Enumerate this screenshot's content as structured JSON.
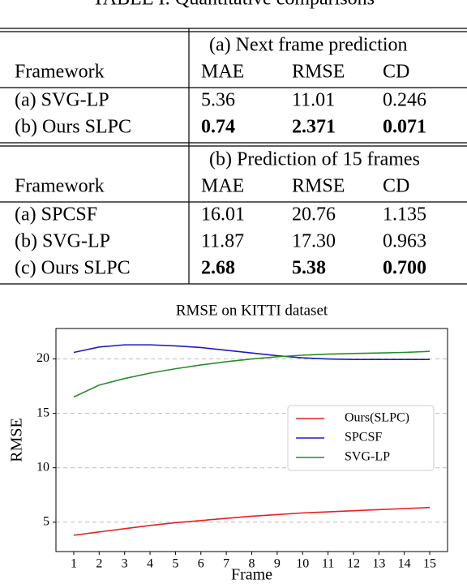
{
  "title": "TABLE I: Quantitative comparisons",
  "table": {
    "sections": [
      {
        "caption": "(a) Next frame prediction",
        "header": [
          "Framework",
          "MAE",
          "RMSE",
          "CD"
        ],
        "rows": [
          [
            "(a) SVG-LP",
            "5.36",
            "11.01",
            "0.246"
          ],
          [
            "(b) Ours SLPC",
            "0.74",
            "2.371",
            "0.071"
          ]
        ],
        "bold_row": 1
      },
      {
        "caption": "(b) Prediction of 15 frames",
        "header": [
          "Framework",
          "MAE",
          "RMSE",
          "CD"
        ],
        "rows": [
          [
            "(a) SPCSF",
            "16.01",
            "20.76",
            "1.135"
          ],
          [
            "(b) SVG-LP",
            "11.87",
            "17.30",
            "0.963"
          ],
          [
            "(c) Ours SLPC",
            "2.68",
            "5.38",
            "0.700"
          ]
        ],
        "bold_row": 2
      }
    ]
  },
  "chart_data": {
    "type": "line",
    "title": "RMSE on KITTI dataset",
    "x_label": "Frame",
    "y_label": "RMSE",
    "x": [
      1,
      2,
      3,
      4,
      5,
      6,
      7,
      8,
      9,
      10,
      11,
      12,
      13,
      14,
      15
    ],
    "series": [
      {
        "name": "Ours(SLPC)",
        "color": "#e8201e",
        "values": [
          3.8,
          4.1,
          4.4,
          4.7,
          4.95,
          5.15,
          5.35,
          5.55,
          5.7,
          5.85,
          5.95,
          6.05,
          6.15,
          6.25,
          6.35
        ]
      },
      {
        "name": "SPCSF",
        "color": "#1c1cc8",
        "values": [
          20.6,
          21.1,
          21.3,
          21.3,
          21.2,
          21.05,
          20.8,
          20.55,
          20.3,
          20.1,
          20.0,
          19.95,
          19.95,
          19.95,
          19.95
        ]
      },
      {
        "name": "SVG-LP",
        "color": "#2a8c2a",
        "values": [
          16.5,
          17.6,
          18.2,
          18.7,
          19.1,
          19.45,
          19.75,
          20.0,
          20.2,
          20.35,
          20.45,
          20.5,
          20.55,
          20.6,
          20.7
        ]
      }
    ],
    "xlim": [
      0.3,
      15.7
    ],
    "ylim": [
      2.3,
      22.8
    ],
    "xticks": [
      1,
      2,
      3,
      4,
      5,
      6,
      7,
      8,
      9,
      10,
      11,
      12,
      13,
      14,
      15
    ],
    "yticks": [
      5,
      10,
      15,
      20
    ],
    "grid": true,
    "legend": "right"
  }
}
